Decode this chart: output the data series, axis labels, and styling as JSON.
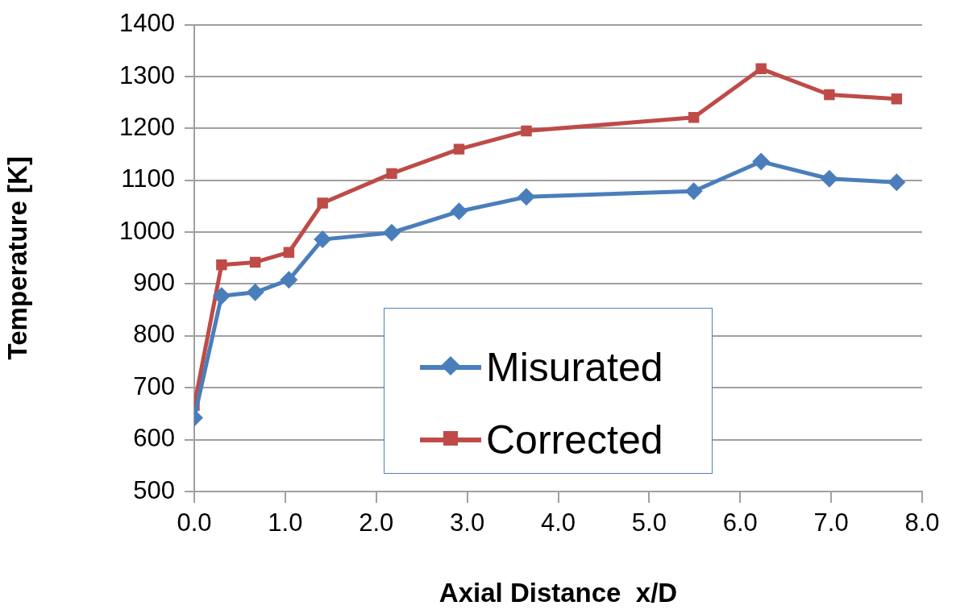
{
  "chart_data": {
    "type": "line",
    "xlabel": "Axial Distance  x/D",
    "ylabel": "Temperature [K]",
    "xlim": [
      0,
      8
    ],
    "xticks": [
      {
        "value": 0,
        "label": "0.0"
      },
      {
        "value": 1,
        "label": "1.0"
      },
      {
        "value": 2,
        "label": "2.0"
      },
      {
        "value": 3,
        "label": "3.0"
      },
      {
        "value": 4,
        "label": "4.0"
      },
      {
        "value": 5,
        "label": "5.0"
      },
      {
        "value": 6,
        "label": "6.0"
      },
      {
        "value": 7,
        "label": "7.0"
      },
      {
        "value": 8,
        "label": "8.0"
      }
    ],
    "ylim": [
      500,
      1400
    ],
    "yticks": [
      500,
      600,
      700,
      800,
      900,
      1000,
      1100,
      1200,
      1300,
      1400
    ],
    "grid": "y",
    "legend": "bottom",
    "line_style": "solid",
    "x": [
      0,
      0.3,
      0.67,
      1.04,
      1.41,
      2.17,
      2.91,
      3.65,
      5.49,
      6.23,
      6.98,
      7.72
    ],
    "series": [
      {
        "name": "Misurated",
        "color": "#4a7ebb",
        "marker": "diamond",
        "values": [
          642,
          877,
          884,
          908,
          986,
          999,
          1040,
          1068,
          1079,
          1136,
          1103,
          1096
        ]
      },
      {
        "name": "Corrected",
        "color": "#be4b48",
        "marker": "square",
        "values": [
          666,
          937,
          942,
          961,
          1056,
          1113,
          1160,
          1195,
          1221,
          1315,
          1265,
          1257
        ]
      }
    ]
  }
}
